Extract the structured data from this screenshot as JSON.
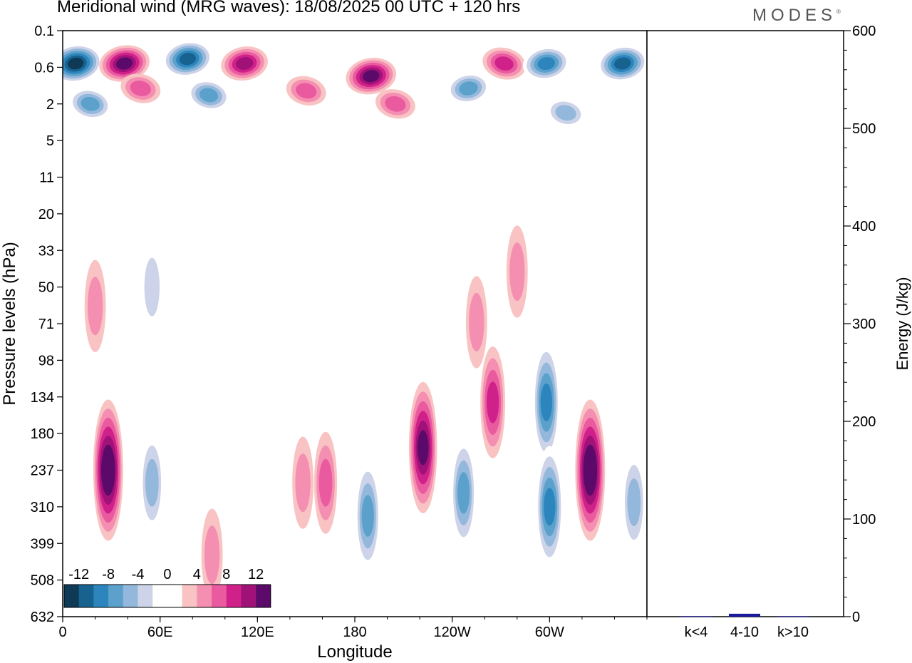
{
  "chart_data": {
    "type": "heatmap",
    "title": "Meridional wind (MRG waves):  18/08/2025  00 UTC  + 120 hrs",
    "brand": "MODES",
    "xlabel": "Longitude",
    "ylabel": "Pressure levels (hPa)",
    "x_ticks": [
      "0",
      "60E",
      "120E",
      "180",
      "120W",
      "60W"
    ],
    "x_tick_degrees": [
      0,
      60,
      120,
      180,
      240,
      300
    ],
    "x_range_degrees": [
      0,
      360
    ],
    "y_ticks": [
      "0.1",
      "0.6",
      "2",
      "5",
      "11",
      "20",
      "33",
      "50",
      "71",
      "98",
      "134",
      "180",
      "237",
      "310",
      "399",
      "508",
      "632"
    ],
    "colorbar": {
      "tick_labels": [
        "-12",
        "-8",
        "-4",
        "0",
        "4",
        "8",
        "12"
      ],
      "levels": [
        -14,
        -12,
        -10,
        -8,
        -6,
        -4,
        -2,
        2,
        4,
        6,
        8,
        10,
        12,
        14
      ],
      "colors": [
        "#0e3a56",
        "#17628f",
        "#2c86bd",
        "#5ba1cc",
        "#93b8db",
        "#cdd3e8",
        "#ffffff",
        "#ffffff",
        "#f9c3c3",
        "#f48fb2",
        "#ea5a9f",
        "#d0218a",
        "#a11279",
        "#5c0a6a"
      ]
    },
    "features": [
      {
        "lon": 8,
        "level": 0.5,
        "value": -14
      },
      {
        "lon": 17,
        "level": 2,
        "value": -8
      },
      {
        "lon": 38,
        "level": 0.5,
        "value": 12
      },
      {
        "lon": 48,
        "level": 1.2,
        "value": 6
      },
      {
        "lon": 77,
        "level": 0.4,
        "value": -12
      },
      {
        "lon": 90,
        "level": 1.5,
        "value": -8
      },
      {
        "lon": 112,
        "level": 0.5,
        "value": 10
      },
      {
        "lon": 150,
        "level": 1.3,
        "value": 6
      },
      {
        "lon": 190,
        "level": 0.8,
        "value": 12
      },
      {
        "lon": 205,
        "level": 2,
        "value": 6
      },
      {
        "lon": 250,
        "level": 1.2,
        "value": -8
      },
      {
        "lon": 272,
        "level": 0.5,
        "value": 8
      },
      {
        "lon": 298,
        "level": 0.5,
        "value": -10
      },
      {
        "lon": 310,
        "level": 2.5,
        "value": -6
      },
      {
        "lon": 345,
        "level": 0.5,
        "value": -12
      },
      {
        "lon": 28,
        "level": 237,
        "value": 14
      },
      {
        "lon": 55,
        "level": 260,
        "value": -6
      },
      {
        "lon": 92,
        "level": 430,
        "value": 4
      },
      {
        "lon": 148,
        "level": 260,
        "value": 4
      },
      {
        "lon": 162,
        "level": 260,
        "value": 6
      },
      {
        "lon": 188,
        "level": 330,
        "value": -8
      },
      {
        "lon": 222,
        "level": 200,
        "value": 12
      },
      {
        "lon": 247,
        "level": 280,
        "value": -8
      },
      {
        "lon": 265,
        "level": 140,
        "value": 8
      },
      {
        "lon": 298,
        "level": 140,
        "value": -10
      },
      {
        "lon": 300,
        "level": 310,
        "value": -10
      },
      {
        "lon": 325,
        "level": 237,
        "value": 14
      },
      {
        "lon": 352,
        "level": 300,
        "value": -6
      },
      {
        "lon": 255,
        "level": 70,
        "value": 4
      },
      {
        "lon": 55,
        "level": 50,
        "value": -4
      },
      {
        "lon": 20,
        "level": 60,
        "value": 4
      },
      {
        "lon": 280,
        "level": 42,
        "value": 4
      }
    ],
    "side_panel": {
      "ylabel": "Energy (J/kg)",
      "ylim": [
        0,
        600
      ],
      "y_ticks": [
        "0",
        "100",
        "200",
        "300",
        "400",
        "500",
        "600"
      ],
      "categories": [
        "k<4",
        "4-10",
        "k>10"
      ],
      "values": [
        0.5,
        3,
        0.5
      ],
      "bar_color": "#1a1aa0"
    }
  }
}
